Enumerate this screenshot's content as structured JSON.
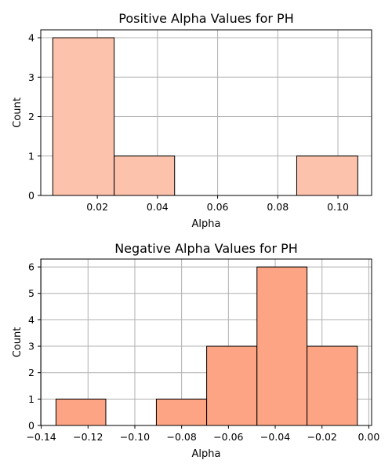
{
  "chart_data": [
    {
      "type": "bar",
      "title": "Positive Alpha Values for PH",
      "xlabel": "Alpha",
      "ylabel": "Count",
      "color": "#fcc2ac",
      "grid": true,
      "xlim": [
        0.0012,
        0.1112
      ],
      "ylim": [
        0,
        4.2
      ],
      "xticks": [
        0.02,
        0.04,
        0.06,
        0.08,
        0.1
      ],
      "xtick_labels": [
        "0.02",
        "0.04",
        "0.06",
        "0.08",
        "0.10"
      ],
      "yticks": [
        0,
        1,
        2,
        3,
        4
      ],
      "ytick_labels": [
        "0",
        "1",
        "2",
        "3",
        "4"
      ],
      "bins": [
        {
          "start": 0.0052,
          "end": 0.0256,
          "count": 4
        },
        {
          "start": 0.0256,
          "end": 0.0457,
          "count": 1
        },
        {
          "start": 0.0457,
          "end": 0.0659,
          "count": 0
        },
        {
          "start": 0.0659,
          "end": 0.0863,
          "count": 0
        },
        {
          "start": 0.0863,
          "end": 0.1066,
          "count": 1
        }
      ]
    },
    {
      "type": "bar",
      "title": "Negative Alpha Values for PH",
      "xlabel": "Alpha",
      "ylabel": "Count",
      "color": "#fca483",
      "grid": true,
      "xlim": [
        -0.1402,
        0.0012
      ],
      "ylim": [
        0,
        6.3
      ],
      "xticks": [
        -0.14,
        -0.12,
        -0.1,
        -0.08,
        -0.06,
        -0.04,
        -0.02,
        0.0
      ],
      "xtick_labels": [
        "−0.14",
        "−0.12",
        "−0.10",
        "−0.08",
        "−0.06",
        "−0.04",
        "−0.02",
        "0.00"
      ],
      "yticks": [
        0,
        1,
        2,
        3,
        4,
        5,
        6
      ],
      "ytick_labels": [
        "0",
        "1",
        "2",
        "3",
        "4",
        "5",
        "6"
      ],
      "bins": [
        {
          "start": -0.1337,
          "end": -0.1124,
          "count": 1
        },
        {
          "start": -0.1124,
          "end": -0.0908,
          "count": 0
        },
        {
          "start": -0.0908,
          "end": -0.0693,
          "count": 1
        },
        {
          "start": -0.0693,
          "end": -0.0478,
          "count": 3
        },
        {
          "start": -0.0478,
          "end": -0.0264,
          "count": 6
        },
        {
          "start": -0.0264,
          "end": -0.0049,
          "count": 3
        }
      ]
    }
  ]
}
